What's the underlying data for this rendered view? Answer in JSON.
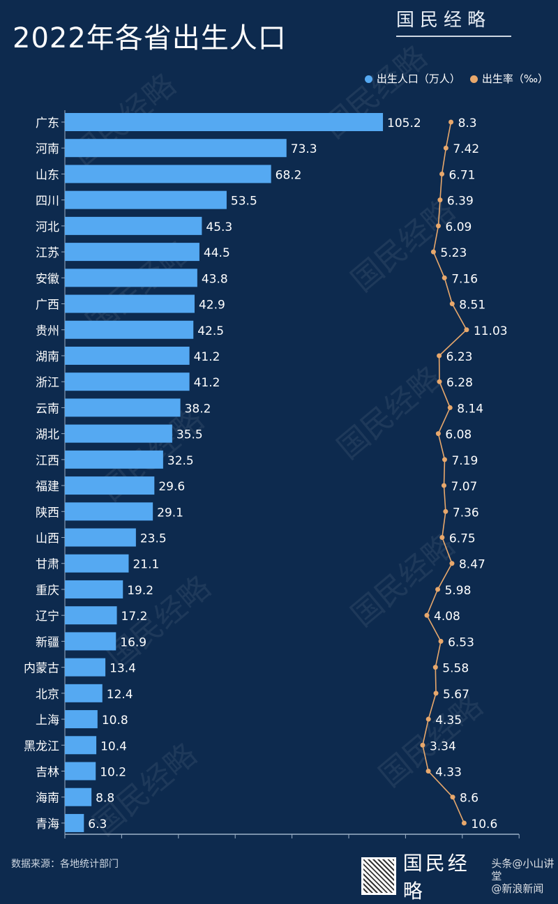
{
  "header": {
    "title": "2022年各省出生人口",
    "brand": "国民经略"
  },
  "footer": {
    "source": "数据来源：各地统计部门",
    "brand": "国民经略",
    "watermark1": "头条@小山讲堂",
    "watermark2": "@新浪新闻"
  },
  "watermark": "国民经略",
  "colors": {
    "background": "#0d2a4e",
    "bar": "#55a9f2",
    "line": "#e8a86c"
  },
  "chart_data": {
    "type": "bar",
    "title": "2022年各省出生人口",
    "legend": [
      "出生人口（万人）",
      "出生率（‰）"
    ],
    "legend_position": "top-right",
    "categories": [
      "广东",
      "河南",
      "山东",
      "四川",
      "河北",
      "江苏",
      "安徽",
      "广西",
      "贵州",
      "湖南",
      "浙江",
      "云南",
      "湖北",
      "江西",
      "福建",
      "陕西",
      "山西",
      "甘肃",
      "重庆",
      "辽宁",
      "新疆",
      "内蒙古",
      "北京",
      "上海",
      "黑龙江",
      "吉林",
      "海南",
      "青海"
    ],
    "series": [
      {
        "name": "出生人口（万人）",
        "type": "bar",
        "values": [
          105.2,
          73.3,
          68.2,
          53.5,
          45.3,
          44.5,
          43.8,
          42.9,
          42.5,
          41.2,
          41.2,
          38.2,
          35.5,
          32.5,
          29.6,
          29.1,
          23.5,
          21.1,
          19.2,
          17.2,
          16.9,
          13.4,
          12.4,
          10.8,
          10.4,
          10.2,
          8.8,
          6.3
        ]
      },
      {
        "name": "出生率（‰）",
        "type": "line",
        "values": [
          8.3,
          7.42,
          6.71,
          6.39,
          6.09,
          5.23,
          7.16,
          8.51,
          11.03,
          6.23,
          6.28,
          8.14,
          6.08,
          7.19,
          7.07,
          7.36,
          6.75,
          8.47,
          5.98,
          4.08,
          6.53,
          5.58,
          5.67,
          4.35,
          3.34,
          4.33,
          8.6,
          10.6
        ]
      }
    ]
  }
}
